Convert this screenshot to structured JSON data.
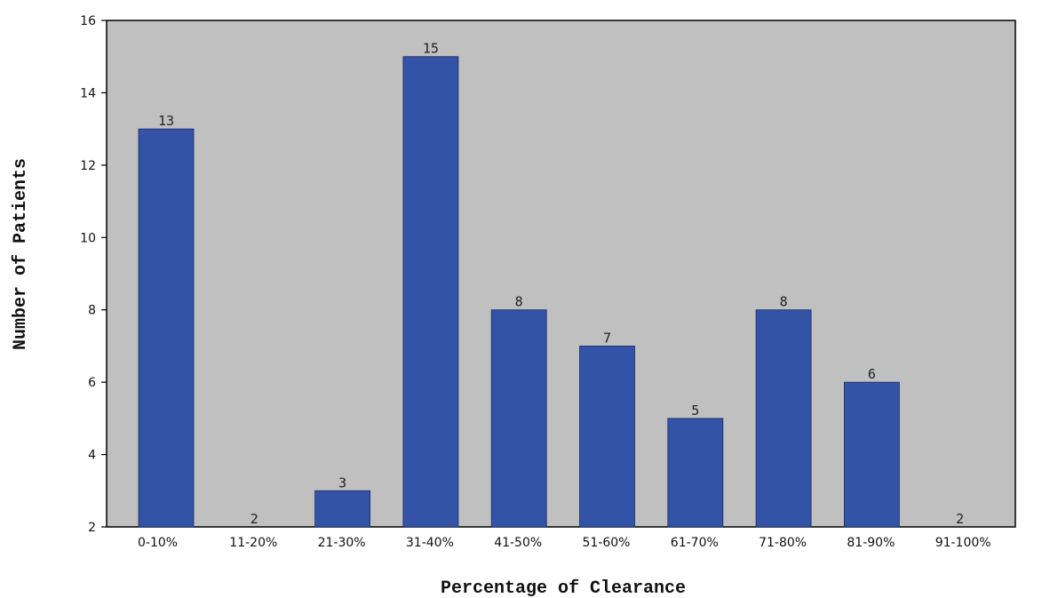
{
  "chart_data": {
    "type": "bar",
    "title": "",
    "xlabel": "Percentage of Clearance",
    "ylabel": "Number of Patients",
    "categories": [
      "0-10%",
      "11-20%",
      "21-30%",
      "31-40%",
      "41-50%",
      "51-60%",
      "61-70%",
      "71-80%",
      "81-90%",
      "91-100%"
    ],
    "values": [
      13,
      2,
      3,
      15,
      8,
      7,
      5,
      8,
      6,
      2
    ],
    "ylim": [
      2,
      16
    ],
    "yticks": [
      2,
      4,
      6,
      8,
      10,
      12,
      14,
      16
    ],
    "grid": false,
    "legend": "none",
    "bar_color": "#3353a6",
    "plot_background": "#c0c0c0",
    "page_background": "#ffffff"
  }
}
